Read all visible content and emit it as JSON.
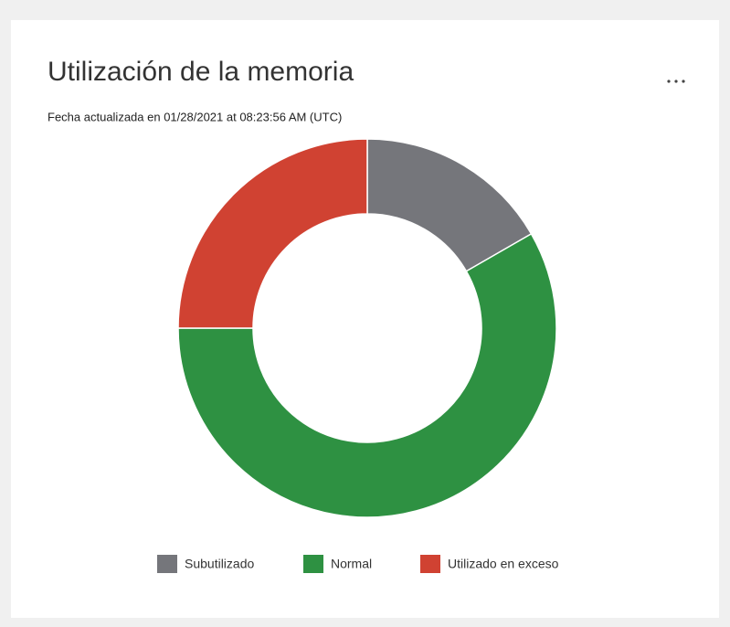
{
  "chart_data": {
    "type": "pie",
    "donut": true,
    "title": "Utilización de la memoria",
    "subtitle": "Fecha actualizada en 01/28/2021 at 08:23:56 AM (UTC)",
    "categories": [
      "Subutilizado",
      "Normal",
      "Utilizado en exceso"
    ],
    "values": [
      16.7,
      58.3,
      25
    ],
    "colors": [
      "#75767b",
      "#2e9142",
      "#d04232"
    ]
  }
}
